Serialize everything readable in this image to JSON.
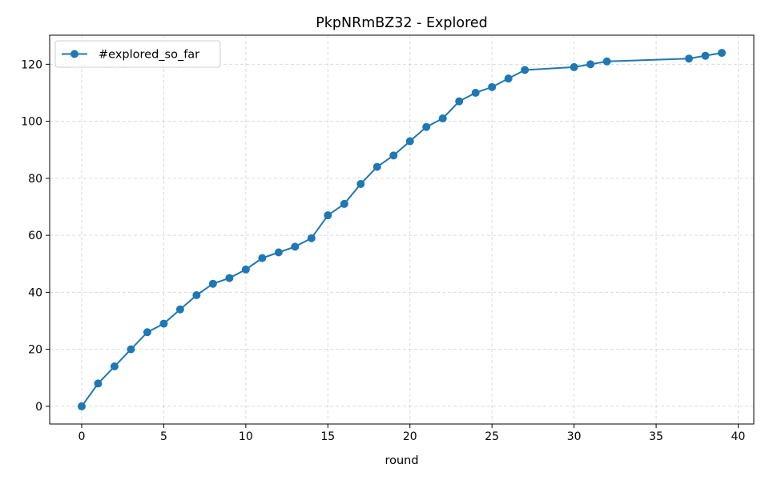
{
  "chart_data": {
    "type": "line",
    "title": "PkpNRmBZ32 - Explored",
    "xlabel": "round",
    "ylabel": "",
    "xlim": [
      -1.95,
      40.95
    ],
    "ylim": [
      -6.2,
      130.2
    ],
    "xticks": [
      0,
      5,
      10,
      15,
      20,
      25,
      30,
      35,
      40
    ],
    "yticks": [
      0,
      20,
      40,
      60,
      80,
      100,
      120
    ],
    "grid": true,
    "legend_position": "top-left",
    "series": [
      {
        "name": "#explored_so_far",
        "color": "#1f77b4",
        "marker": "circle",
        "x": [
          0,
          1,
          2,
          3,
          4,
          5,
          6,
          7,
          8,
          9,
          10,
          11,
          12,
          13,
          14,
          15,
          16,
          17,
          18,
          19,
          20,
          21,
          22,
          23,
          24,
          25,
          26,
          27,
          30,
          31,
          32,
          37,
          38,
          39
        ],
        "y": [
          0,
          8,
          14,
          20,
          26,
          29,
          34,
          39,
          43,
          45,
          48,
          52,
          54,
          56,
          59,
          67,
          71,
          78,
          84,
          88,
          93,
          98,
          101,
          107,
          110,
          112,
          115,
          118,
          119,
          120,
          121,
          122,
          123,
          124
        ]
      }
    ]
  }
}
